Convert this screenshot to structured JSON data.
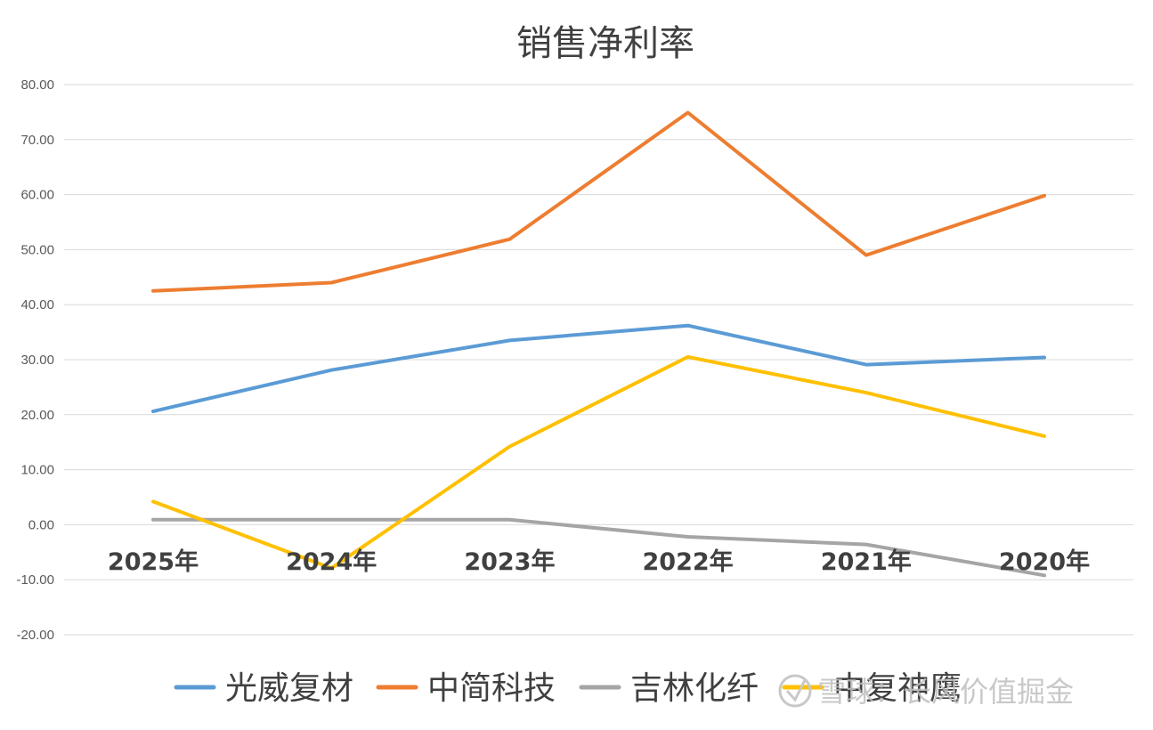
{
  "chart_data": {
    "type": "line",
    "title": "销售净利率",
    "categories": [
      "2025年",
      "2024年",
      "2023年",
      "2022年",
      "2021年",
      "2020年"
    ],
    "ylim": [
      -20,
      80
    ],
    "ytick_values": [
      -20,
      -10,
      0,
      10,
      20,
      30,
      40,
      50,
      60,
      70,
      80
    ],
    "ytick_labels": [
      "-20.00",
      "-10.00",
      "0.00",
      "10.00",
      "20.00",
      "30.00",
      "40.00",
      "50.00",
      "60.00",
      "70.00",
      "80.00"
    ],
    "grid": true,
    "legend_position": "bottom",
    "series": [
      {
        "name": "光威复材",
        "color": "#5B9BD5",
        "values": [
          20.6,
          28.1,
          33.5,
          36.2,
          29.1,
          30.4
        ]
      },
      {
        "name": "中简科技",
        "color": "#ED7D31",
        "values": [
          42.5,
          44.0,
          51.9,
          74.9,
          49.0,
          59.8
        ]
      },
      {
        "name": "吉林化纤",
        "color": "#A5A5A5",
        "values": [
          0.9,
          0.9,
          0.9,
          -2.2,
          -3.6,
          -9.2
        ]
      },
      {
        "name": "中复神鹰",
        "color": "#FFC000",
        "values": [
          4.2,
          -7.9,
          14.2,
          30.5,
          24.0,
          16.1
        ]
      }
    ]
  },
  "watermark": {
    "text": "雪球：长风价值掘金",
    "icon": "snowball-logo-icon"
  }
}
